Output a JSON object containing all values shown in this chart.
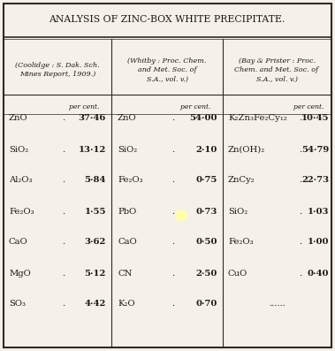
{
  "title": "ANALYSIS OF ZINC-BOX WHITE PRECIPITATE.",
  "bg_color": "#f5f0e8",
  "border_color": "#2a2a2a",
  "text_color": "#1a1a1a",
  "col1_header": "(Coolidge : S. Dak. Sch.\nMines Report, 1909.)",
  "col2_header": "(Whitby : Proc. Chem.\nand Met. Soc. of\nS.A., vol. v.)",
  "col3_header": "(Bay & Prister : Proc.\nChem. and Met. Soc. of\nS.A., vol. v.)",
  "per_cent_label": "per cent.",
  "col1_rows": [
    [
      "ZnO",
      ".",
      "37·46"
    ],
    [
      "SiO₂",
      ".",
      "13·12"
    ],
    [
      "Al₂O₃",
      ".",
      "5·84"
    ],
    [
      "Fe₂O₃",
      ".",
      "1·55"
    ],
    [
      "CaO",
      ".",
      "3·62"
    ],
    [
      "MgO",
      ".",
      "5·12"
    ],
    [
      "SO₃",
      ".",
      "4·42"
    ]
  ],
  "col2_rows": [
    [
      "ZnO",
      ".",
      "54·00"
    ],
    [
      "SiO₂",
      ".",
      "2·10"
    ],
    [
      "Fe₂O₃",
      ".",
      "0·75"
    ],
    [
      "PbO",
      ".",
      "0·73"
    ],
    [
      "CaO",
      ".",
      "0·50"
    ],
    [
      "CN",
      ".",
      "2·50"
    ],
    [
      "K₂O",
      ".",
      "0·70"
    ]
  ],
  "col3_rows": [
    [
      "K₂Zn₃Fe₂Cy₁₂",
      ".",
      "10·45"
    ],
    [
      "Zn(OH)₂",
      ".",
      "54·79"
    ],
    [
      "ZnCy₂",
      ".",
      "22·73"
    ],
    [
      "SiO₂",
      ".",
      "1·03"
    ],
    [
      "Fe₂O₃",
      ".",
      "1·00"
    ],
    [
      "CuO",
      ".",
      "0·40"
    ],
    [
      "......",
      "",
      ""
    ]
  ]
}
